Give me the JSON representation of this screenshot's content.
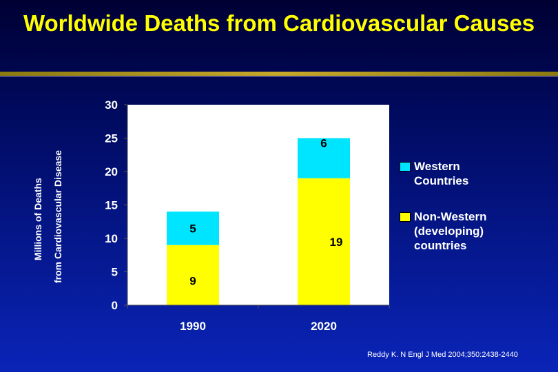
{
  "chart_data": {
    "type": "bar",
    "stacked": true,
    "title": "Worldwide Deaths from Cardiovascular Causes",
    "ylabel_lines": [
      "Millions of Deaths",
      "from Cardiovascular Disease"
    ],
    "categories": [
      "1990",
      "2020"
    ],
    "series": [
      {
        "name": "Non-Western (developing) countries",
        "values": [
          9,
          19
        ],
        "color": "#ffff00"
      },
      {
        "name": "Western Countries",
        "values": [
          5,
          6
        ],
        "color": "#00e5ff"
      }
    ],
    "ylim": [
      0,
      30
    ],
    "yticks": [
      0,
      5,
      10,
      15,
      20,
      25,
      30
    ],
    "grid": false,
    "legend_position": "right",
    "plot_background": "#ffffff"
  },
  "legend": {
    "items": [
      {
        "label": "Western\nCountries",
        "color": "#00e5ff"
      },
      {
        "label": "Non-Western\n(developing)\ncountries",
        "color": "#ffff00"
      }
    ]
  },
  "source": "Reddy K. N Engl J Med 2004;350:2438-2440"
}
